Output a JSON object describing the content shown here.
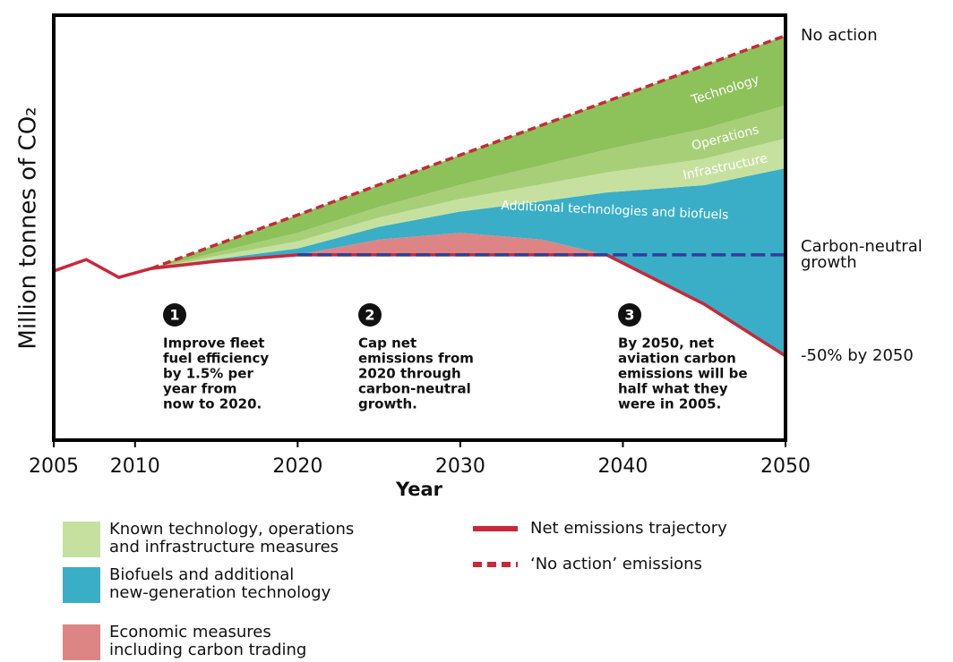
{
  "chart_data": {
    "type": "area",
    "y_label": "Million tonnes of CO₂",
    "x_label": "Year",
    "x": [
      2005,
      2007,
      2009,
      2011,
      2015,
      2020,
      2025,
      2030,
      2035,
      2039,
      2045,
      2050
    ],
    "xlim": [
      2005,
      2050
    ],
    "xticks": [
      2005,
      2010,
      2020,
      2030,
      2040,
      2050
    ],
    "ylim": [
      0,
      100
    ],
    "series": [
      {
        "role": "base",
        "color": "#c8283a",
        "values": [
          39.8,
          42.5,
          38.3,
          40.4,
          42.1,
          43.6,
          43.6,
          43.6,
          43.6,
          43.6,
          32.0,
          19.8
        ],
        "end_label": [
          "-50% by 2050"
        ]
      },
      {
        "role": "stack",
        "color": "#dd8585",
        "values": [
          0,
          0,
          0,
          0,
          0,
          0,
          3.6,
          5.2,
          3.6,
          0,
          0,
          0
        ]
      },
      {
        "role": "stack",
        "name": "Additional technologies and biofuels",
        "color": "#3aaec6",
        "values": [
          0,
          0,
          0,
          0,
          0.5,
          1.5,
          3.0,
          5.0,
          9.0,
          14.7,
          28.0,
          44.2
        ]
      },
      {
        "role": "stack",
        "name": "Infrastructure",
        "color": "#c6e19f",
        "values": [
          0,
          0,
          0,
          0,
          0.75,
          1.7,
          2.2,
          3.0,
          4.0,
          4.7,
          6.2,
          7.0
        ]
      },
      {
        "role": "stack",
        "name": "Operations",
        "color": "#a6cf78",
        "values": [
          0,
          0,
          0,
          0,
          0.85,
          2.0,
          2.5,
          3.3,
          4.5,
          5.4,
          7.1,
          7.8
        ]
      },
      {
        "role": "stack",
        "name": "Technology",
        "color": "#8dc15a",
        "values": [
          0,
          0,
          0,
          0,
          1.8,
          4.2,
          5.2,
          7.0,
          9.4,
          11.3,
          14.9,
          16.4
        ]
      },
      {
        "role": "dashed",
        "color": "#c8283a",
        "values": [
          null,
          null,
          null,
          40.4,
          46.0,
          53.0,
          60.1,
          67.1,
          74.1,
          79.7,
          88.2,
          95.2
        ],
        "end_label": [
          "No action"
        ]
      },
      {
        "role": "dashed",
        "color": "#2e3f9a",
        "values": [
          null,
          null,
          null,
          null,
          null,
          43.6,
          43.6,
          43.6,
          43.6,
          43.6,
          43.6,
          43.6
        ],
        "end_label": [
          "Carbon-neutral",
          "growth"
        ]
      }
    ],
    "annotations": [
      {
        "marker": "1",
        "lines": [
          "Improve fleet",
          "fuel efficiency",
          "by 1.5% per",
          "year from",
          "now to 2020."
        ]
      },
      {
        "marker": "2",
        "lines": [
          "Cap net",
          "emissions from",
          "2020 through",
          "carbon-neutral",
          "growth."
        ]
      },
      {
        "marker": "3",
        "lines": [
          "By 2050, net",
          "aviation carbon",
          "emissions will be",
          "half what they",
          "were in 2005."
        ]
      }
    ],
    "legend": [
      {
        "kind": "patch",
        "color": "#c6e19f",
        "label": [
          "Known technology, operations",
          "and infrastructure measures"
        ]
      },
      {
        "kind": "patch",
        "color": "#3aaec6",
        "label": [
          "Biofuels and additional",
          "new-generation technology"
        ]
      },
      {
        "kind": "patch",
        "color": "#dd8585",
        "label": [
          "Economic measures",
          "including carbon trading"
        ]
      },
      {
        "kind": "line",
        "color": "#c8283a",
        "label": [
          "Net emissions trajectory"
        ]
      },
      {
        "kind": "dashed",
        "color": "#c8283a",
        "label": [
          "‘No action’ emissions"
        ]
      }
    ]
  }
}
